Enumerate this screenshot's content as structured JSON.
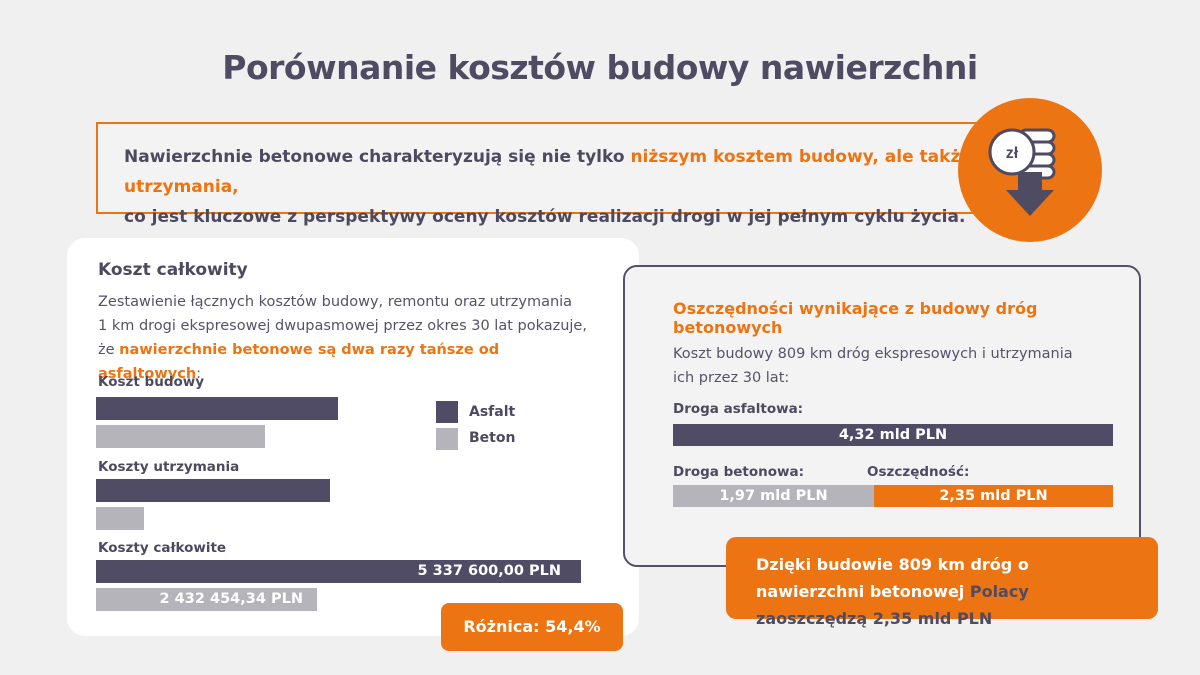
{
  "title": "Porównanie kosztów budowy nawierzchni",
  "intro": {
    "part1": "Nawierzchnie betonowe charakteryzują się nie tylko ",
    "highlight": "niższym kosztem budowy, ale także utrzymania,",
    "part2": "co jest kluczowe z perspektywy oceny kosztów realizacji drogi w jej pełnym cyklu życia."
  },
  "icon": {
    "name": "coins-down-arrow-icon",
    "coin_label": "zł"
  },
  "colors": {
    "accent": "#ec7412",
    "asfalt": "#504c66",
    "beton": "#b5b4bb"
  },
  "left_card": {
    "heading": "Koszt całkowity",
    "desc_line1": "Zestawienie łącznych kosztów budowy, remontu oraz utrzymania",
    "desc_line2": "1 km drogi ekspresowej dwupasmowej przez okres 30 lat pokazuje,",
    "desc_line3_pre": "że ",
    "desc_line3_hl": "nawierzchnie betonowe są dwa razy tańsze od asfaltowych",
    "desc_line3_post": ":"
  },
  "chart_data": {
    "type": "bar",
    "orientation": "horizontal",
    "categories": [
      "Koszt budowy",
      "Koszty utrzymania",
      "Koszty całkowite"
    ],
    "series": [
      {
        "name": "Asfalt",
        "color": "#504c66",
        "values": [
          2660000,
          2570000,
          5337600
        ]
      },
      {
        "name": "Beton",
        "color": "#b5b4bb",
        "values": [
          1860000,
          530000,
          2432454.34
        ]
      }
    ],
    "data_labels": {
      "asfalt_total": "5 337 600,00 PLN",
      "beton_total": "2 432 454,34 PLN"
    },
    "xlim": [
      0,
      5337600
    ],
    "legend_position": "right",
    "grid": false
  },
  "difference": "Różnica: 54,4%",
  "right_card": {
    "heading": "Oszczędności wynikające z budowy dróg betonowych",
    "desc": "Koszt budowy 809 km dróg ekspresowych i utrzymania ich przez 30 lat:",
    "asfalt_label": "Droga asfaltowa:",
    "asfalt_value": "4,32 mld PLN",
    "beton_label": "Droga betonowa:",
    "beton_value": "1,97 mld PLN",
    "savings_label": "Oszczędność:",
    "savings_value": "2,35 mld PLN",
    "chart_data": {
      "type": "bar",
      "unit": "mld PLN",
      "asfalt": 4.32,
      "beton": 1.97,
      "savings": 2.35
    }
  },
  "callout": {
    "part1": "Dzięki budowie 809 km dróg o nawierzchni betonowej ",
    "highlight": "Polacy zaoszczędzą 2,35 mld PLN"
  }
}
